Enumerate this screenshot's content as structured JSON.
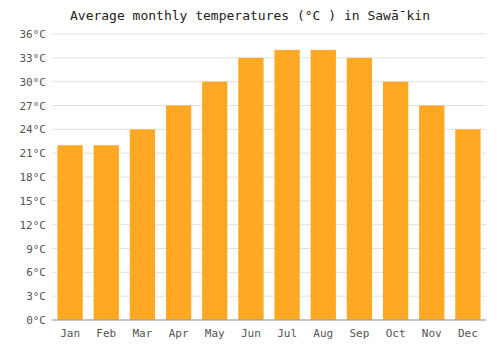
{
  "chart_data": {
    "type": "bar",
    "title": "Average monthly temperatures (°C ) in Sawā̄ kin",
    "categories": [
      "Jan",
      "Feb",
      "Mar",
      "Apr",
      "May",
      "Jun",
      "Jul",
      "Aug",
      "Sep",
      "Oct",
      "Nov",
      "Dec"
    ],
    "values": [
      22,
      22,
      24,
      27,
      30,
      33,
      34,
      34,
      33,
      30,
      27,
      24
    ],
    "color": "#FFA824",
    "ylim": [
      0,
      36
    ],
    "yticks": [
      {
        "value": 0,
        "label": "0°C"
      },
      {
        "value": 3,
        "label": "3°C"
      },
      {
        "value": 6,
        "label": "6°C"
      },
      {
        "value": 9,
        "label": "9°C"
      },
      {
        "value": 12,
        "label": "12°C"
      },
      {
        "value": 15,
        "label": "15°C"
      },
      {
        "value": 18,
        "label": "18°C"
      },
      {
        "value": 21,
        "label": "21°C"
      },
      {
        "value": 24,
        "label": "24°C"
      },
      {
        "value": 27,
        "label": "27°C"
      },
      {
        "value": 30,
        "label": "30°C"
      },
      {
        "value": 33,
        "label": "33°C"
      },
      {
        "value": 36,
        "label": "36°C"
      }
    ],
    "grid": true
  }
}
